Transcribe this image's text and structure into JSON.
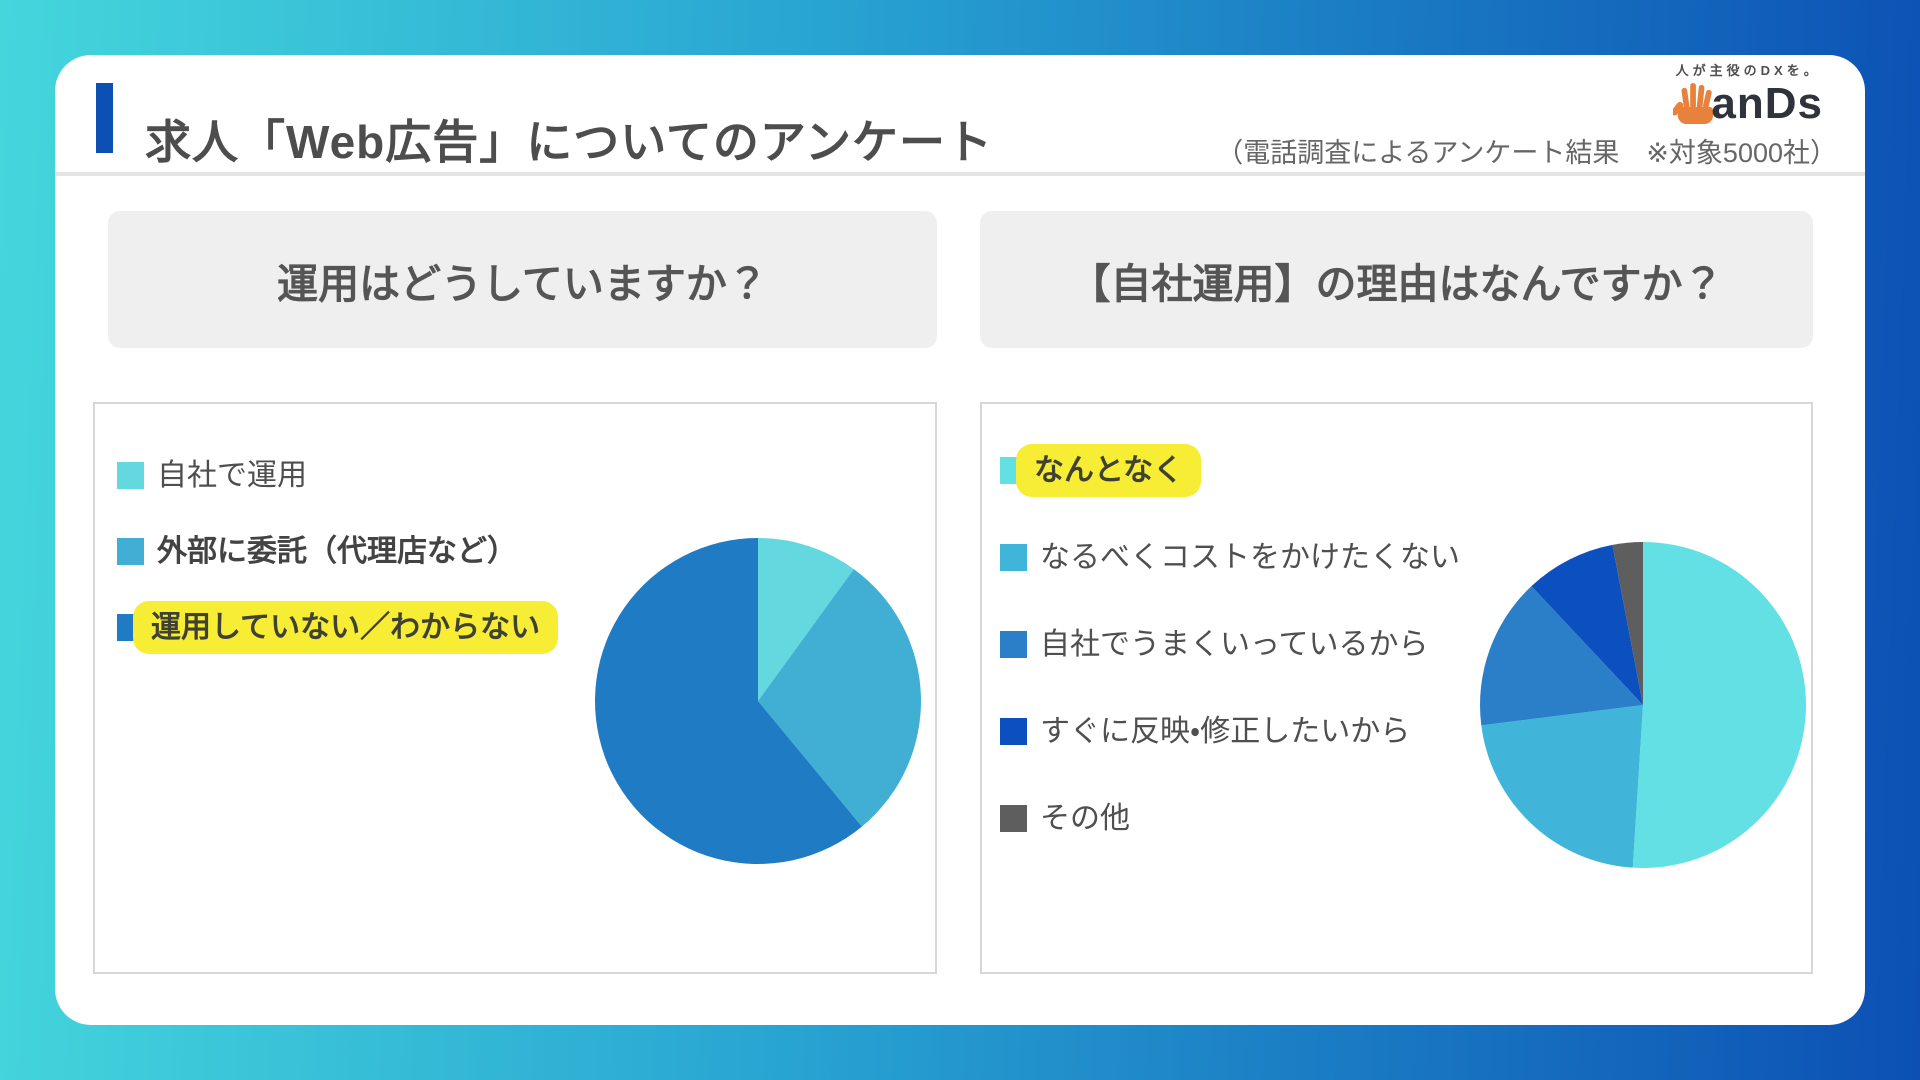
{
  "theme": {
    "accent_color": "#0C50B4",
    "highlight_color": "#F7ED35",
    "logo_orange": "#E8813B",
    "bg_gradient_start": "#45D6DC",
    "bg_gradient_end": "#0C50B4"
  },
  "header": {
    "title": "求人「Web広告」についてのアンケート",
    "subtitle": "（電話調査によるアンケート結果　※対象5000社）",
    "logo": {
      "tagline": "人が主役のDXを。",
      "brand": "anDs"
    }
  },
  "chart_data": [
    {
      "type": "pie",
      "title": "運用はどうしていますか？",
      "legend_position": "left",
      "slices": [
        {
          "label": "自社で運用",
          "value": 10,
          "color": "#63D8DF",
          "bold": false,
          "highlight": false
        },
        {
          "label": "外部に委託（代理店など）",
          "value": 29,
          "color": "#41AFD4",
          "bold": true,
          "highlight": false
        },
        {
          "label": "運用していない／わからない",
          "value": 61,
          "color": "#1E7BC4",
          "bold": true,
          "highlight": true
        }
      ]
    },
    {
      "type": "pie",
      "title": "【自社運用】の理由はなんですか？",
      "legend_position": "left",
      "slices": [
        {
          "label": "なんとなく",
          "value": 51,
          "color": "#63E0E4",
          "bold": true,
          "highlight": true
        },
        {
          "label": "なるべくコストをかけたくない",
          "value": 22,
          "color": "#41B5D9",
          "bold": false,
          "highlight": false
        },
        {
          "label": "自社でうまくいっているから",
          "value": 15,
          "color": "#2A7FC8",
          "bold": false,
          "highlight": false
        },
        {
          "label": "すぐに反映・修正したいから",
          "value": 9,
          "color": "#0C4FBE",
          "bold": false,
          "highlight": false
        },
        {
          "label": "その他",
          "value": 3,
          "color": "#5E5E5E",
          "bold": false,
          "highlight": false
        }
      ]
    }
  ]
}
